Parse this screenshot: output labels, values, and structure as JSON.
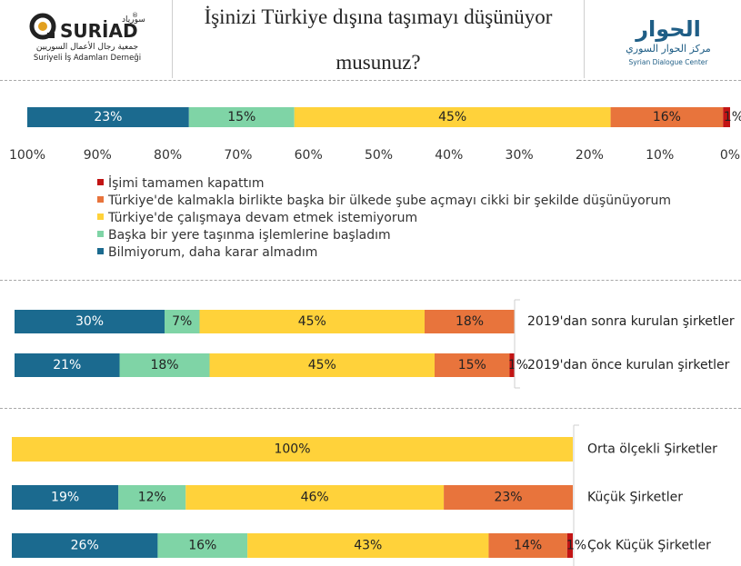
{
  "header": {
    "title_line1": "İşinizi Türkiye dışına taşımayı düşünüyor",
    "title_line2": "musunuz?",
    "left_logo": {
      "brand": "SURİAD",
      "brand_arabic": "سورياد",
      "arabic_name": "جمعية رجال الأعمال السوريين",
      "name": "Suriyeli İş Adamları Derneği",
      "registered_mark": "®"
    },
    "right_logo": {
      "arabic_main": "الحوار",
      "arabic_sub": "مركز الحوار السوري",
      "name": "Syrian Dialogue Center"
    }
  },
  "colors": {
    "Bilmiyorum": "#1b6a8f",
    "Baska": "#7fd4a6",
    "Calismaya": "#ffd23a",
    "Sube": "#e8743c",
    "Kapattim": "#c21414"
  },
  "chart_data": [
    {
      "type": "bar",
      "orientation": "horizontal-stacked",
      "x_direction": "reversed",
      "xlim": [
        0,
        100
      ],
      "x_ticks": [
        "100%",
        "90%",
        "80%",
        "70%",
        "60%",
        "50%",
        "40%",
        "30%",
        "20%",
        "10%",
        "0%"
      ],
      "categories": [
        ""
      ],
      "series": [
        {
          "name": "Bilmiyorum, daha karar almadım",
          "key": "Bilmiyorum",
          "values": [
            23
          ],
          "labels": [
            "23%"
          ]
        },
        {
          "name": "Başka bir yere taşınma işlemlerine başladım",
          "key": "Baska",
          "values": [
            15
          ],
          "labels": [
            "15%"
          ]
        },
        {
          "name": "Türkiye'de çalışmaya devam etmek istemiyorum",
          "key": "Calismaya",
          "values": [
            45
          ],
          "labels": [
            "45%"
          ]
        },
        {
          "name": "Türkiye'de kalmakla birlikte başka bir ülkede şube açmayı cikki bir şekilde düşünüyorum",
          "key": "Sube",
          "values": [
            16
          ],
          "labels": [
            "16%"
          ]
        },
        {
          "name": "İşimi tamamen kapattım",
          "key": "Kapattim",
          "values": [
            1
          ],
          "labels": [
            "1%"
          ]
        }
      ],
      "legend": {
        "position": "below",
        "entries": [
          {
            "label": "İşimi tamamen kapattım",
            "key": "Kapattim"
          },
          {
            "label": "Türkiye'de kalmakla birlikte başka bir ülkede şube açmayı cikki bir şekilde düşünüyorum",
            "key": "Sube"
          },
          {
            "label": "Türkiye'de çalışmaya devam etmek istemiyorum",
            "key": "Calismaya"
          },
          {
            "label": "Başka bir yere taşınma işlemlerine başladım",
            "key": "Baska"
          },
          {
            "label": "Bilmiyorum, daha karar almadım",
            "key": "Bilmiyorum"
          }
        ]
      }
    },
    {
      "type": "bar",
      "orientation": "horizontal-stacked",
      "xlim": [
        0,
        100
      ],
      "categories": [
        "2019'dan sonra kurulan şirketler",
        "2019'dan önce kurulan şirketler"
      ],
      "series": [
        {
          "name": "Bilmiyorum, daha karar almadım",
          "key": "Bilmiyorum",
          "values": [
            30,
            21
          ],
          "labels": [
            "30%",
            "21%"
          ]
        },
        {
          "name": "Başka bir yere taşınma işlemlerine başladım",
          "key": "Baska",
          "values": [
            7,
            18
          ],
          "labels": [
            "7%",
            "18%"
          ]
        },
        {
          "name": "Türkiye'de çalışmaya devam etmek istemiyorum",
          "key": "Calismaya",
          "values": [
            45,
            45
          ],
          "labels": [
            "45%",
            "45%"
          ]
        },
        {
          "name": "Türkiye'de kalmakla birlikte başka bir ülkede şube açmayı cikki bir şekilde düşünüyorum",
          "key": "Sube",
          "values": [
            18,
            15
          ],
          "labels": [
            "18%",
            "15%"
          ]
        },
        {
          "name": "İşimi tamamen kapattım",
          "key": "Kapattim",
          "values": [
            0,
            1
          ],
          "labels": [
            "",
            "1%"
          ]
        }
      ]
    },
    {
      "type": "bar",
      "orientation": "horizontal-stacked",
      "xlim": [
        0,
        100
      ],
      "categories": [
        "Orta ölçekli Şirketler",
        "Küçük Şirketler",
        "Çok Küçük Şirketler"
      ],
      "series": [
        {
          "name": "Bilmiyorum, daha karar almadım",
          "key": "Bilmiyorum",
          "values": [
            0,
            19,
            26
          ],
          "labels": [
            "",
            "19%",
            "26%"
          ]
        },
        {
          "name": "Başka bir yere taşınma işlemlerine başladım",
          "key": "Baska",
          "values": [
            0,
            12,
            16
          ],
          "labels": [
            "",
            "12%",
            "16%"
          ]
        },
        {
          "name": "Türkiye'de çalışmaya devam etmek istemiyorum",
          "key": "Calismaya",
          "values": [
            100,
            46,
            43
          ],
          "labels": [
            "100%",
            "46%",
            "43%"
          ]
        },
        {
          "name": "Türkiye'de kalmakla birlikte başka bir ülkede şube açmayı cikki bir şekilde düşünüyorum",
          "key": "Sube",
          "values": [
            0,
            23,
            14
          ],
          "labels": [
            "",
            "23%",
            "14%"
          ]
        },
        {
          "name": "İşimi tamamen kapattım",
          "key": "Kapattim",
          "values": [
            0,
            0,
            1
          ],
          "labels": [
            "",
            "",
            "1%"
          ]
        }
      ]
    }
  ]
}
